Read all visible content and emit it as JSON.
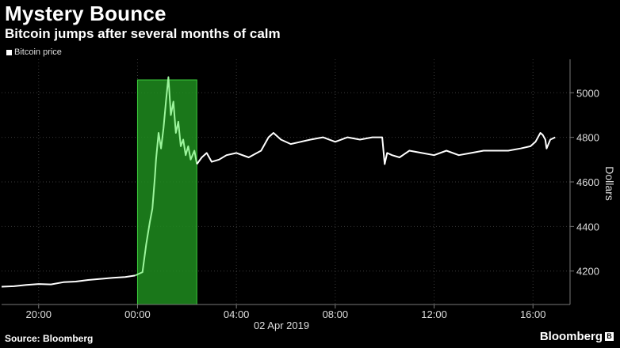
{
  "title": "Mystery Bounce",
  "subtitle": "Bitcoin jumps after several months of calm",
  "source": "Source: Bloomberg",
  "brand": "Bloomberg",
  "brand_icon": "bloomberg-b-icon",
  "colors": {
    "background": "#000000",
    "line": "#ffffff",
    "highlight_fill": "#1e8c1e",
    "highlight_line": "#9cf59c",
    "grid": "#3a3a3a",
    "axis": "#777777"
  },
  "chart_data": {
    "type": "line",
    "title": "Mystery Bounce",
    "subtitle": "Bitcoin jumps after several months of calm",
    "legend": [
      "Bitcoin price"
    ],
    "legend_position": "top-left",
    "ylabel": "Dollars",
    "xlabel": "02 Apr 2019",
    "y_axis_side": "right",
    "ylim": [
      4050,
      5150
    ],
    "yticks": [
      4200,
      4400,
      4600,
      4800,
      5000
    ],
    "ytick_labels": [
      "4200",
      "4400",
      "4600",
      "4800",
      "5000"
    ],
    "xlim": [
      -5.5,
      17.5
    ],
    "xticks": [
      -4,
      0,
      4,
      8,
      12,
      16
    ],
    "xtick_labels": [
      "20:00",
      "00:00",
      "04:00",
      "08:00",
      "12:00",
      "16:00"
    ],
    "x_units": "hours relative to 00:00 on 02 Apr 2019",
    "grid": true,
    "highlight": {
      "x_start": 0,
      "x_end": 2.4
    },
    "series": [
      {
        "name": "Bitcoin price",
        "x": [
          -5.5,
          -5,
          -4.5,
          -4,
          -3.5,
          -3,
          -2.5,
          -2,
          -1.5,
          -1,
          -0.5,
          -0.1,
          0.2,
          0.35,
          0.5,
          0.6,
          0.7,
          0.75,
          0.85,
          0.95,
          1.05,
          1.15,
          1.25,
          1.35,
          1.45,
          1.55,
          1.65,
          1.75,
          1.85,
          1.95,
          2.05,
          2.15,
          2.3,
          2.4,
          2.6,
          2.8,
          3.0,
          3.3,
          3.6,
          4.0,
          4.5,
          5.0,
          5.3,
          5.5,
          5.8,
          6.2,
          6.6,
          7.0,
          7.5,
          8.0,
          8.5,
          9.0,
          9.5,
          9.9,
          10.0,
          10.1,
          10.3,
          10.6,
          11.0,
          11.5,
          12.0,
          12.5,
          13.0,
          13.5,
          14.0,
          14.5,
          15.0,
          15.5,
          15.9,
          16.1,
          16.3,
          16.4,
          16.5,
          16.55,
          16.7,
          16.9
        ],
        "y": [
          4130,
          4132,
          4138,
          4142,
          4140,
          4150,
          4153,
          4160,
          4165,
          4170,
          4173,
          4180,
          4195,
          4320,
          4420,
          4480,
          4620,
          4700,
          4820,
          4750,
          4840,
          4960,
          5070,
          4900,
          4960,
          4820,
          4870,
          4760,
          4790,
          4720,
          4760,
          4700,
          4740,
          4680,
          4710,
          4730,
          4690,
          4700,
          4720,
          4730,
          4710,
          4740,
          4800,
          4820,
          4790,
          4770,
          4780,
          4790,
          4800,
          4780,
          4800,
          4790,
          4800,
          4800,
          4680,
          4730,
          4720,
          4710,
          4740,
          4730,
          4720,
          4740,
          4720,
          4730,
          4740,
          4740,
          4740,
          4750,
          4760,
          4780,
          4820,
          4810,
          4790,
          4750,
          4790,
          4800
        ]
      }
    ]
  }
}
